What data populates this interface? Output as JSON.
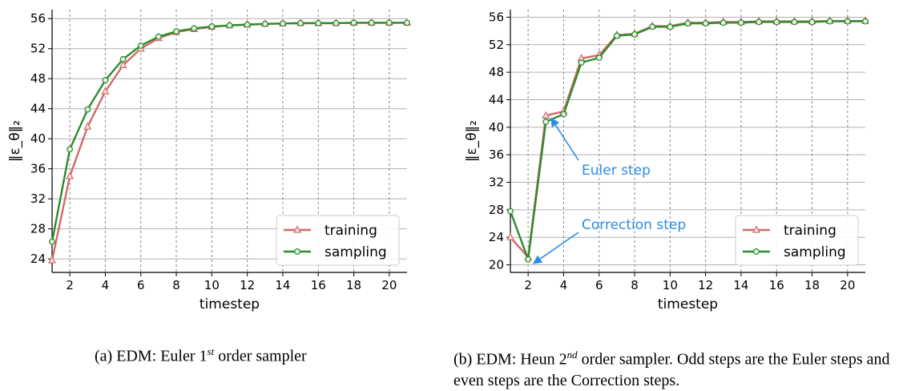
{
  "colors": {
    "training": "#d46a6a",
    "sampling": "#2e8b2e",
    "annotation": "#2b8ce6",
    "grid": "#b0b0b0"
  },
  "chart_data": [
    {
      "type": "line",
      "xlabel": "timestep",
      "ylabel": "‖ε_θ‖₂",
      "xlim": [
        1,
        21
      ],
      "ylim": [
        22.2,
        57.2
      ],
      "xticks": [
        2,
        4,
        6,
        8,
        10,
        12,
        14,
        16,
        18,
        20
      ],
      "yticks": [
        24,
        28,
        32,
        36,
        40,
        44,
        48,
        52,
        56
      ],
      "x_grid": true,
      "y_grid": true,
      "legend_position": "lower right",
      "x": [
        1,
        2,
        3,
        4,
        5,
        6,
        7,
        8,
        9,
        10,
        11,
        12,
        13,
        14,
        15,
        16,
        17,
        18,
        19,
        20,
        21
      ],
      "series": [
        {
          "name": "training",
          "marker": "triangle",
          "values": [
            23.8,
            35.0,
            41.6,
            46.3,
            49.8,
            52.0,
            53.4,
            54.2,
            54.6,
            54.9,
            55.1,
            55.2,
            55.3,
            55.35,
            55.4,
            55.4,
            55.4,
            55.45,
            55.45,
            55.45,
            55.45
          ]
        },
        {
          "name": "sampling",
          "marker": "circle",
          "values": [
            26.3,
            38.6,
            43.9,
            47.8,
            50.6,
            52.4,
            53.6,
            54.3,
            54.7,
            54.95,
            55.1,
            55.2,
            55.3,
            55.35,
            55.4,
            55.4,
            55.4,
            55.45,
            55.45,
            55.45,
            55.45
          ]
        }
      ]
    },
    {
      "type": "line",
      "xlabel": "timestep",
      "ylabel": "‖ε_θ‖₂",
      "xlim": [
        1,
        21
      ],
      "ylim": [
        18.9,
        57.1
      ],
      "xticks": [
        2,
        4,
        6,
        8,
        10,
        12,
        14,
        16,
        18,
        20
      ],
      "yticks": [
        20,
        24,
        28,
        32,
        36,
        40,
        44,
        48,
        52,
        56
      ],
      "x_grid": true,
      "y_grid": true,
      "legend_position": "lower right",
      "annotations": [
        {
          "text": "Euler step",
          "point": [
            3.3,
            41.3
          ]
        },
        {
          "text": "Correction step",
          "point": [
            2.3,
            20.2
          ]
        }
      ],
      "x": [
        1,
        2,
        3,
        4,
        5,
        6,
        7,
        8,
        9,
        10,
        11,
        12,
        13,
        14,
        15,
        16,
        17,
        18,
        19,
        20,
        21
      ],
      "series": [
        {
          "name": "training",
          "marker": "triangle",
          "values": [
            24.0,
            21.1,
            41.7,
            42.3,
            50.0,
            50.5,
            53.4,
            53.6,
            54.7,
            54.7,
            55.2,
            55.2,
            55.3,
            55.3,
            55.4,
            55.4,
            55.4,
            55.4,
            55.45,
            55.45,
            55.45
          ]
        },
        {
          "name": "sampling",
          "marker": "circle",
          "values": [
            27.8,
            20.8,
            40.8,
            41.9,
            49.4,
            50.1,
            53.3,
            53.5,
            54.6,
            54.6,
            55.1,
            55.1,
            55.2,
            55.2,
            55.3,
            55.3,
            55.3,
            55.3,
            55.4,
            55.4,
            55.4
          ]
        }
      ]
    }
  ],
  "captions": {
    "a": {
      "prefix": "(a) EDM: Euler 1",
      "sup": "st",
      "suffix": " order sampler"
    },
    "b": {
      "prefix": "(b) EDM: Heun 2",
      "sup": "nd",
      "suffix": " order sampler. Odd steps are the Euler steps and even steps are the Correction steps."
    }
  }
}
